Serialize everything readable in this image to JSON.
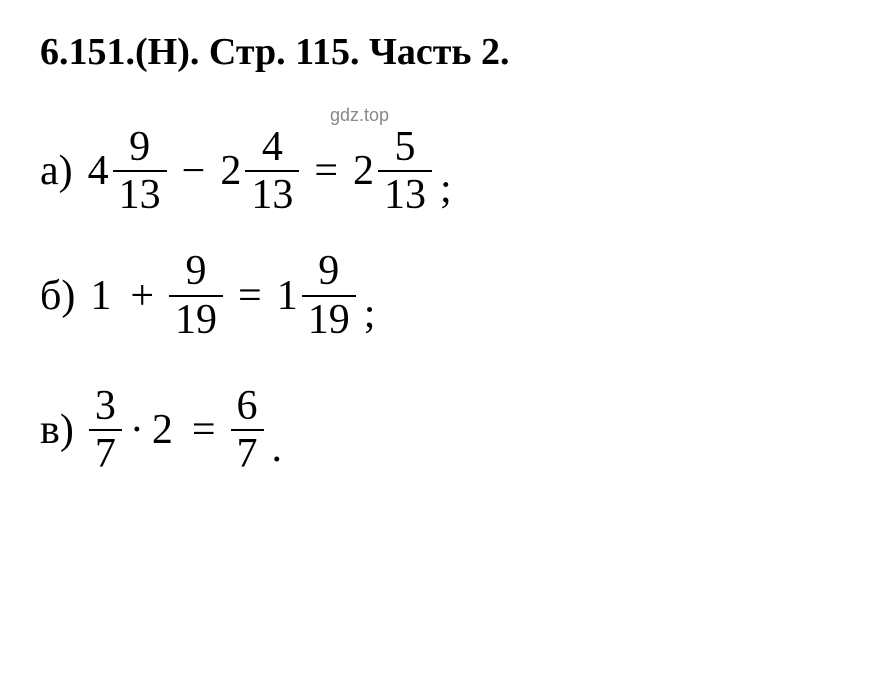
{
  "header": {
    "problem_number": "6.151.(Н).",
    "page_ref": "Стр. 115.",
    "part": "Часть 2."
  },
  "watermark": "gdz.top",
  "equations": {
    "a": {
      "label": "а)",
      "term1": {
        "whole": "4",
        "num": "9",
        "den": "13"
      },
      "op": "−",
      "term2": {
        "whole": "2",
        "num": "4",
        "den": "13"
      },
      "result": {
        "whole": "2",
        "num": "5",
        "den": "13"
      },
      "terminator": ";"
    },
    "b": {
      "label": "б)",
      "term1": {
        "whole": "1"
      },
      "op": "+",
      "term2": {
        "num": "9",
        "den": "19"
      },
      "result": {
        "whole": "1",
        "num": "9",
        "den": "19"
      },
      "terminator": ";"
    },
    "c": {
      "label": "в)",
      "term1": {
        "num": "3",
        "den": "7"
      },
      "op": "·",
      "term2": {
        "whole": "2"
      },
      "result": {
        "num": "6",
        "den": "7"
      },
      "terminator": "."
    }
  },
  "colors": {
    "text": "#000000",
    "background": "#ffffff",
    "watermark": "#888888"
  },
  "typography": {
    "header_fontsize": 38,
    "equation_fontsize": 42,
    "watermark_fontsize": 18,
    "font_family": "Times New Roman"
  }
}
